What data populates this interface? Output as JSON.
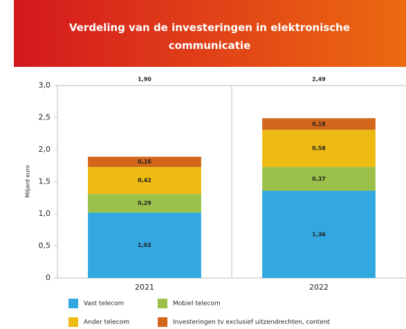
{
  "chart_data": {
    "type": "stacked_bar",
    "title": "Verdeling van de investeringen in elektronische communicatie",
    "y_label": "Miljard euro",
    "categories": [
      "2021",
      "2022"
    ],
    "series": [
      {
        "name": "Vast telecom",
        "color": "#33a8e0",
        "values": [
          1.02,
          1.36
        ],
        "value_labels": [
          "1,02",
          "1,36"
        ]
      },
      {
        "name": "Mobiel telecom",
        "color": "#9bc14a",
        "values": [
          0.29,
          0.37
        ],
        "value_labels": [
          "0,29",
          "0,37"
        ]
      },
      {
        "name": "Ander telecom",
        "color": "#eebb12",
        "values": [
          0.42,
          0.58
        ],
        "value_labels": [
          "0,42",
          "0,58"
        ]
      },
      {
        "name": "Investeringen tv exclusief uitzendrechten, content",
        "color": "#d2661c",
        "values": [
          0.16,
          0.18
        ],
        "value_labels": [
          "0,16",
          "0,18"
        ]
      }
    ],
    "totals": {
      "values": [
        1.9,
        2.49
      ],
      "value_labels": [
        "1,90",
        "2,49"
      ]
    },
    "ylim": [
      0,
      3
    ],
    "yticks": [
      0,
      {
        "value": 0.5,
        "label": "0,5"
      },
      {
        "value": 1,
        "label": "1,0"
      },
      {
        "value": 1.5,
        "label": "1,5"
      },
      {
        "value": 2,
        "label": "2,0"
      },
      {
        "value": 2.5,
        "label": "2,5"
      },
      {
        "value": 3,
        "label": "3,0"
      }
    ],
    "grid": false
  }
}
